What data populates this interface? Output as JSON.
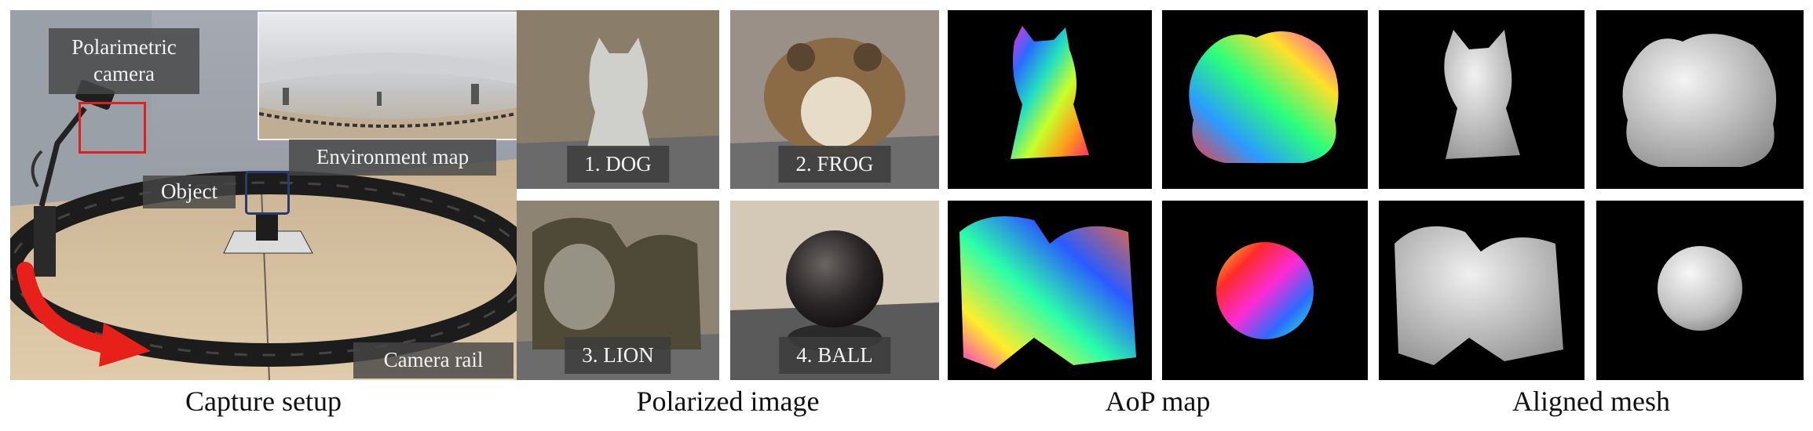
{
  "captions": {
    "capture_setup": "Capture setup",
    "polarized_image": "Polarized image",
    "aop_map": "AoP map",
    "aligned_mesh": "Aligned mesh"
  },
  "setup_labels": {
    "polarimetric_camera": "Polarimetric camera",
    "environment_map": "Environment map",
    "object": "Object",
    "camera_rail": "Camera rail"
  },
  "objects": [
    {
      "label": "1. DOG"
    },
    {
      "label": "2. FROG"
    },
    {
      "label": "3. LION"
    },
    {
      "label": "4. BALL"
    }
  ],
  "colors": {
    "highlight_box": "#e02020",
    "motion_arrow": "#e8201a",
    "object_box": "#2a3a6a"
  }
}
